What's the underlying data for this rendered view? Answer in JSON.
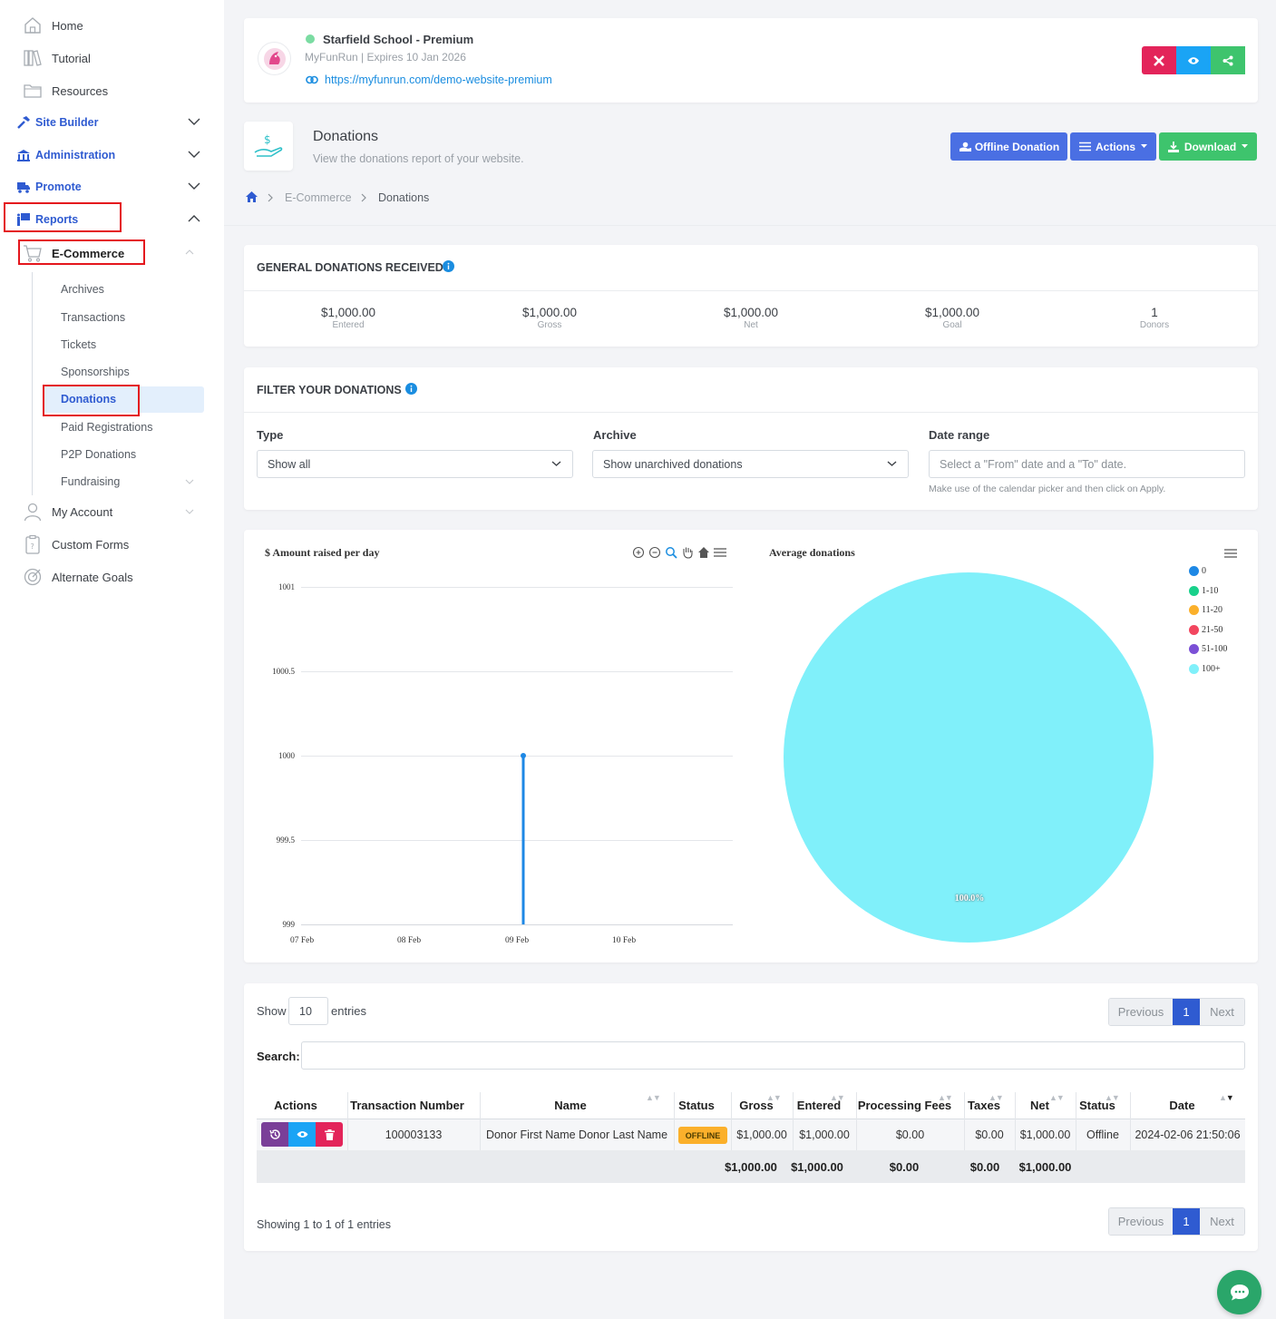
{
  "sidebar": {
    "home": "Home",
    "tutorial": "Tutorial",
    "resources": "Resources",
    "site_builder": "Site Builder",
    "administration": "Administration",
    "promote": "Promote",
    "reports": "Reports",
    "ecommerce": "E-Commerce",
    "sub_items": [
      "Archives",
      "Transactions",
      "Tickets",
      "Sponsorships",
      "Donations",
      "Paid Registrations",
      "P2P Donations",
      "Fundraising"
    ],
    "my_account": "My Account",
    "custom_forms": "Custom Forms",
    "alternate_goals": "Alternate Goals"
  },
  "site": {
    "name": "Starfield School - Premium",
    "meta": "MyFunRun | Expires 10 Jan 2026",
    "url": "https://myfunrun.com/demo-website-premium"
  },
  "page": {
    "title": "Donations",
    "subtitle": "View the donations report of your website.",
    "btn_offline": "Offline Donation",
    "btn_actions": "Actions",
    "btn_download": "Download",
    "breadcrumb": [
      "E-Commerce",
      "Donations"
    ]
  },
  "general": {
    "title": "GENERAL DONATIONS RECEIVED",
    "stats": [
      {
        "value": "$1,000.00",
        "label": "Entered"
      },
      {
        "value": "$1,000.00",
        "label": "Gross"
      },
      {
        "value": "$1,000.00",
        "label": "Net"
      },
      {
        "value": "$1,000.00",
        "label": "Goal"
      },
      {
        "value": "1",
        "label": "Donors"
      }
    ]
  },
  "filter": {
    "title": "FILTER YOUR DONATIONS",
    "type_label": "Type",
    "type_value": "Show all",
    "archive_label": "Archive",
    "archive_value": "Show unarchived donations",
    "date_label": "Date range",
    "date_placeholder": "Select a \"From\" date and a \"To\" date.",
    "date_help": "Make use of the calendar picker and then click on Apply."
  },
  "chart_data": [
    {
      "type": "line",
      "title": "$ Amount raised per day",
      "x": [
        "07 Feb",
        "08 Feb",
        "09 Feb",
        "10 Feb"
      ],
      "series": [
        {
          "x": "09 Feb",
          "y": 1000
        }
      ],
      "yticks": [
        "1001",
        "1000.5",
        "1000",
        "999.5",
        "999"
      ],
      "ylim": [
        999,
        1001
      ],
      "grid": true
    },
    {
      "type": "pie",
      "title": "Average donations",
      "categories": [
        "0",
        "1-10",
        "11-20",
        "21-50",
        "51-100",
        "100+"
      ],
      "values": [
        0,
        0,
        0,
        0,
        0,
        100
      ],
      "colors": [
        "#1e88e5",
        "#19d18b",
        "#fbb02b",
        "#f2465f",
        "#7b50d6",
        "#80f0fa"
      ],
      "slice_label": "100.0%",
      "legend": "top-right"
    }
  ],
  "table": {
    "show_label": "Show",
    "entries_value": "10",
    "entries_label": "entries",
    "search_label": "Search:",
    "prev": "Previous",
    "page": "1",
    "next": "Next",
    "headers": [
      "Actions",
      "Transaction Number",
      "Name",
      "Status",
      "Gross",
      "Entered",
      "Processing Fees",
      "Taxes",
      "Net",
      "Status",
      "Date"
    ],
    "row": {
      "transaction": "100003133",
      "name": "Donor First Name Donor Last Name",
      "status_badge": "OFFLINE",
      "gross": "$1,000.00",
      "entered": "$1,000.00",
      "fees": "$0.00",
      "taxes": "$0.00",
      "net": "$1,000.00",
      "status": "Offline",
      "date": "2024-02-06 21:50:06"
    },
    "totals": {
      "gross": "$1,000.00",
      "entered": "$1,000.00",
      "fees": "$0.00",
      "taxes": "$0.00",
      "net": "$1,000.00"
    },
    "info": "Showing 1 to 1 of 1 entries"
  },
  "colors": {
    "primary": "#2f5bd1",
    "accent_blue": "#4a6fe3",
    "green": "#3ec46d",
    "red": "#e3245a",
    "cyan": "#1aa4f5",
    "purple": "#7a3f98",
    "badge": "#fbb02b"
  }
}
